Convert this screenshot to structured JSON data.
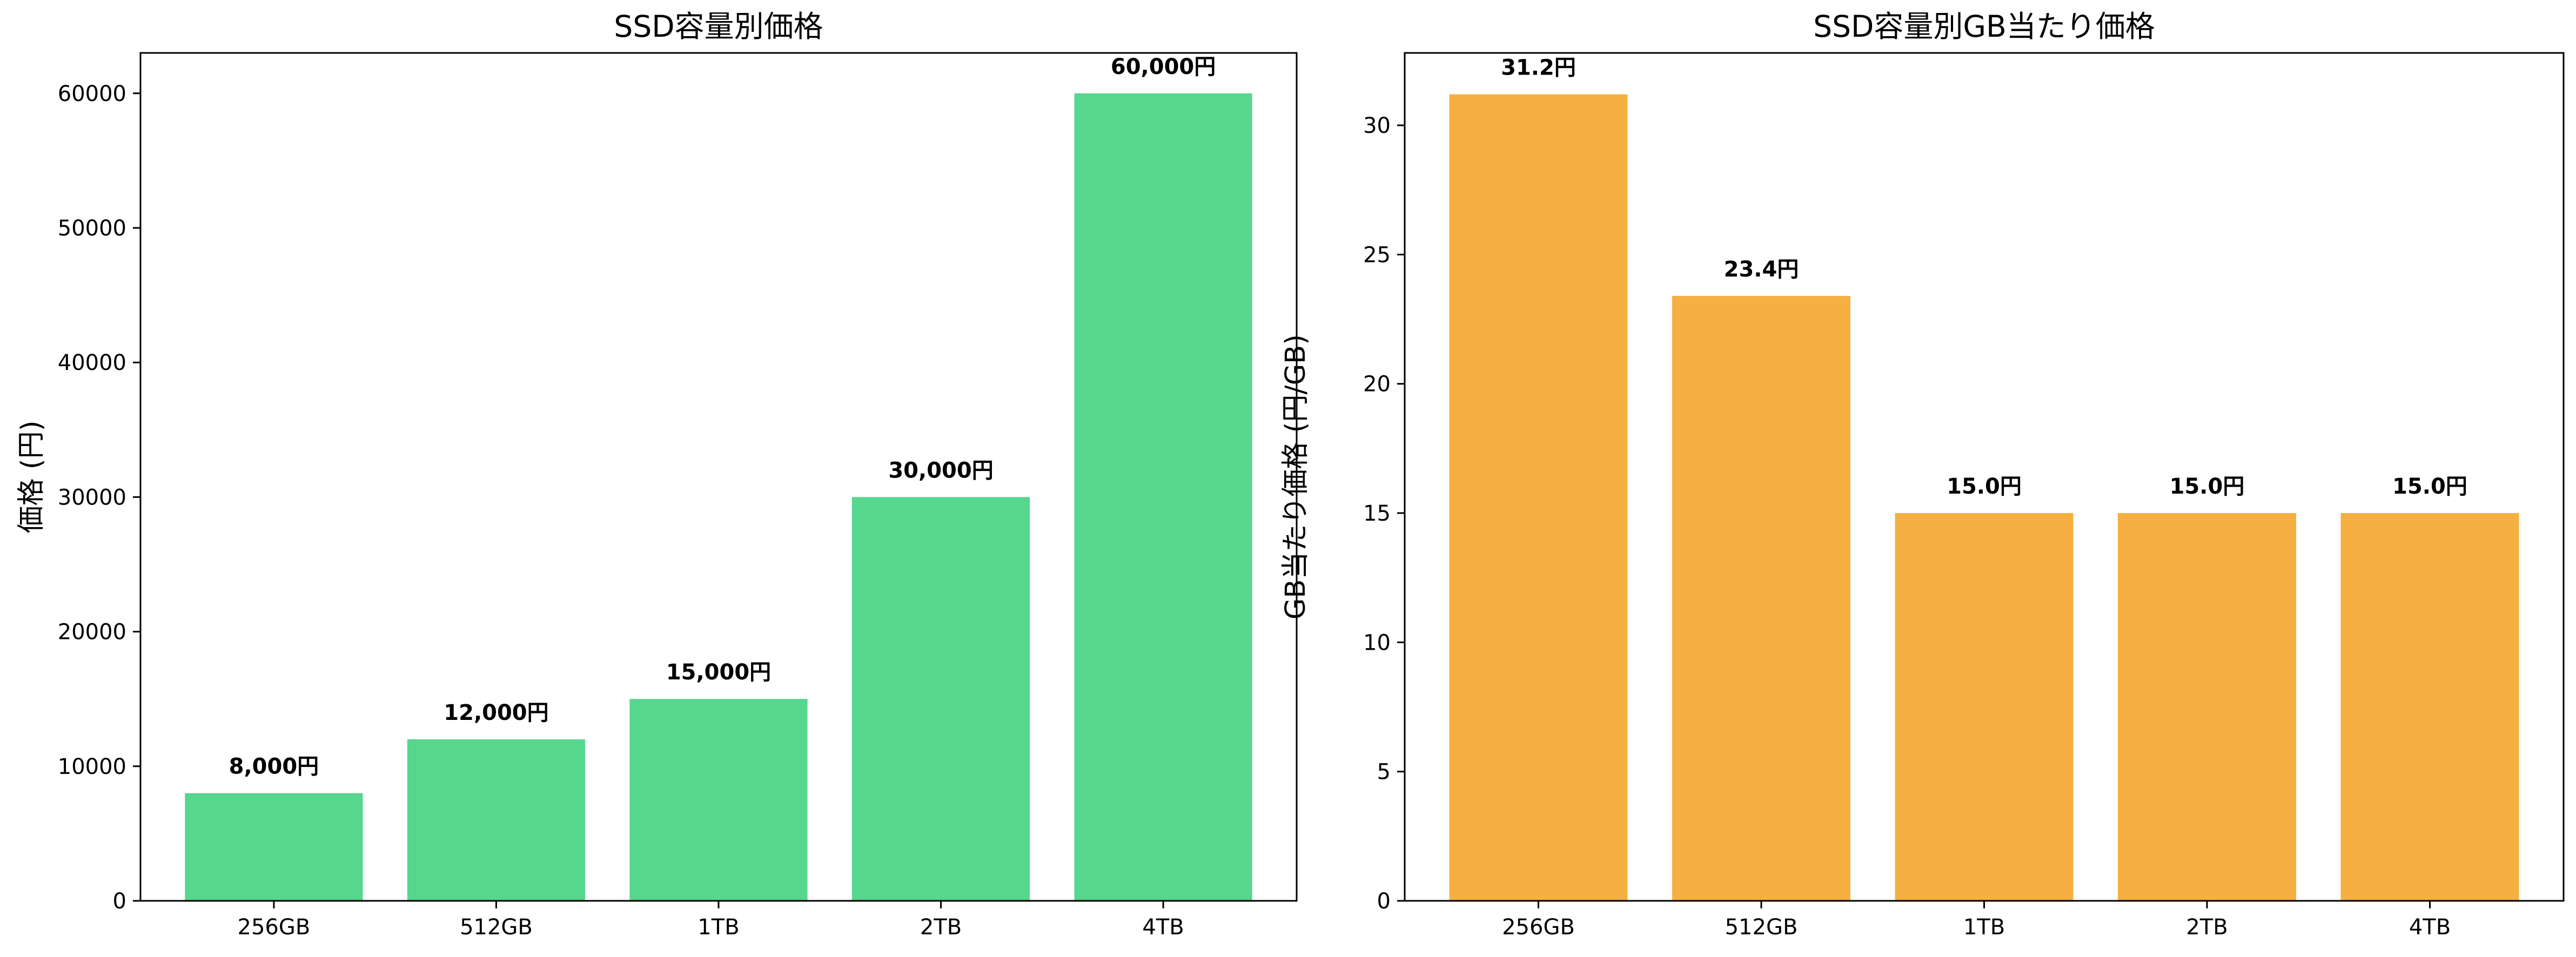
{
  "chart_data": [
    {
      "type": "bar",
      "title": "SSD容量別価格",
      "xlabel": "",
      "ylabel": "価格 (円)",
      "categories": [
        "256GB",
        "512GB",
        "1TB",
        "2TB",
        "4TB"
      ],
      "values": [
        8000,
        12000,
        15000,
        30000,
        60000
      ],
      "data_labels": [
        "8,000円",
        "12,000円",
        "15,000円",
        "30,000円",
        "60,000円"
      ],
      "ylim": [
        0,
        63000
      ],
      "yticks": [
        0,
        10000,
        20000,
        30000,
        40000,
        50000,
        60000
      ],
      "ytick_labels": [
        "0",
        "10000",
        "20000",
        "30000",
        "40000",
        "50000",
        "60000"
      ],
      "bar_color": "#57D68D",
      "grid": false
    },
    {
      "type": "bar",
      "title": "SSD容量別GB当たり価格",
      "xlabel": "",
      "ylabel": "GB当たり価格 (円/GB)",
      "categories": [
        "256GB",
        "512GB",
        "1TB",
        "2TB",
        "4TB"
      ],
      "values": [
        31.2,
        23.4,
        15.0,
        15.0,
        15.0
      ],
      "data_labels": [
        "31.2円",
        "23.4円",
        "15.0円",
        "15.0円",
        "15.0円"
      ],
      "ylim": [
        0,
        32.8
      ],
      "yticks": [
        0,
        5,
        10,
        15,
        20,
        25,
        30
      ],
      "ytick_labels": [
        "0",
        "5",
        "10",
        "15",
        "20",
        "25",
        "30"
      ],
      "bar_color": "#F5B041",
      "grid": false
    }
  ]
}
